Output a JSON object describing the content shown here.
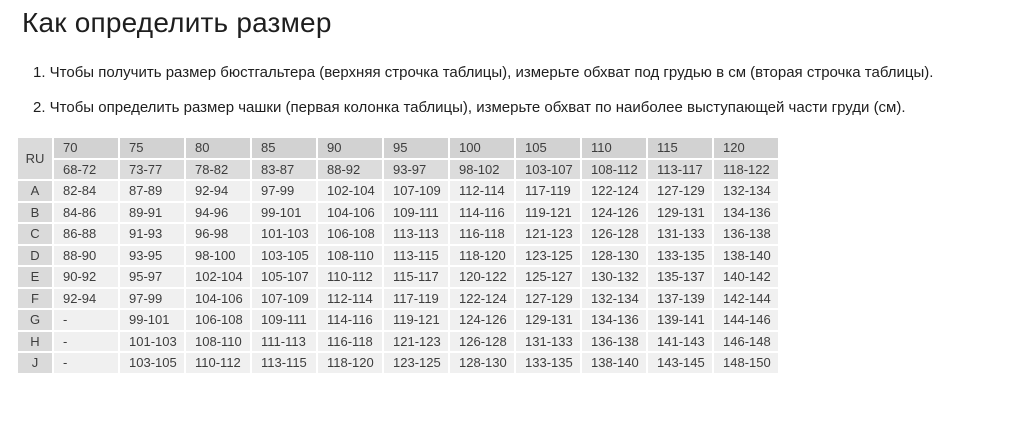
{
  "page": {
    "title": "Как определить размер"
  },
  "instructions": [
    "1. Чтобы получить размер бюстгальтера (верхняя строчка таблицы), измерьте обхват под грудью в см (вторая строчка таблицы).",
    "2. Чтобы определить размер чашки (первая колонка таблицы), измерьте обхват по наиболее выступающей части груди (см)."
  ],
  "size_table": {
    "corner_label": "RU",
    "band_sizes": [
      "70",
      "75",
      "80",
      "85",
      "90",
      "95",
      "100",
      "105",
      "110",
      "115",
      "120"
    ],
    "underbust_ranges": [
      "68-72",
      "73-77",
      "78-82",
      "83-87",
      "88-92",
      "93-97",
      "98-102",
      "103-107",
      "108-112",
      "113-117",
      "118-122"
    ],
    "cup_rows": [
      {
        "cup": "A",
        "values": [
          "82-84",
          "87-89",
          "92-94",
          "97-99",
          "102-104",
          "107-109",
          "112-114",
          "117-119",
          "122-124",
          "127-129",
          "132-134"
        ]
      },
      {
        "cup": "B",
        "values": [
          "84-86",
          "89-91",
          "94-96",
          "99-101",
          "104-106",
          "109-111",
          "114-116",
          "119-121",
          "124-126",
          "129-131",
          "134-136"
        ]
      },
      {
        "cup": "C",
        "values": [
          "86-88",
          "91-93",
          "96-98",
          "101-103",
          "106-108",
          "113-113",
          "116-118",
          "121-123",
          "126-128",
          "131-133",
          "136-138"
        ]
      },
      {
        "cup": "D",
        "values": [
          "88-90",
          "93-95",
          "98-100",
          "103-105",
          "108-110",
          "113-115",
          "118-120",
          "123-125",
          "128-130",
          "133-135",
          "138-140"
        ]
      },
      {
        "cup": "E",
        "values": [
          "90-92",
          "95-97",
          "102-104",
          "105-107",
          "110-112",
          "115-117",
          "120-122",
          "125-127",
          "130-132",
          "135-137",
          "140-142"
        ]
      },
      {
        "cup": "F",
        "values": [
          "92-94",
          "97-99",
          "104-106",
          "107-109",
          "112-114",
          "117-119",
          "122-124",
          "127-129",
          "132-134",
          "137-139",
          "142-144"
        ]
      },
      {
        "cup": "G",
        "values": [
          "-",
          "99-101",
          "106-108",
          "109-111",
          "114-116",
          "119-121",
          "124-126",
          "129-131",
          "134-136",
          "139-141",
          "144-146"
        ]
      },
      {
        "cup": "H",
        "values": [
          "-",
          "101-103",
          "108-110",
          "111-113",
          "116-118",
          "121-123",
          "126-128",
          "131-133",
          "136-138",
          "141-143",
          "146-148"
        ]
      },
      {
        "cup": "J",
        "values": [
          "-",
          "103-105",
          "110-112",
          "113-115",
          "118-120",
          "123-125",
          "128-130",
          "133-135",
          "138-140",
          "143-145",
          "148-150"
        ]
      }
    ]
  },
  "colors": {
    "header_bg": "#d2d2d2",
    "subheader_bg": "#dcdcdc",
    "letter_col_bg": "#dadada",
    "body_cell_bg": "#f0f0f0",
    "cell_text": "#3d3d3d",
    "text": "#1e1e1e",
    "page_bg": "#ffffff"
  }
}
